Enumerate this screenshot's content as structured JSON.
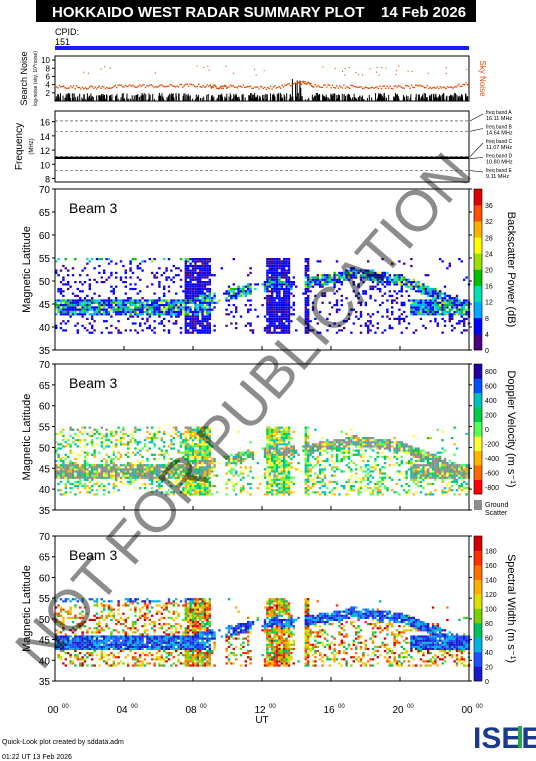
{
  "header": {
    "title": "HOKKAIDO WEST RADAR SUMMARY PLOT",
    "date": "14 Feb 2026",
    "cpid_label": "CPID:",
    "cpid_value": "151"
  },
  "watermark": "NOT FOR PUBLICATION",
  "footer": {
    "credit": "Quick-Look plot created by sddata.adm",
    "timestamp": "01:22 UT 13 Feb 2026",
    "logo": "ISEE"
  },
  "colors": {
    "cpid_bar": "#1a1aff",
    "noise_dots": "#e04a00",
    "ground_scatter": "#8c8c8c"
  },
  "chart_data": [
    {
      "type": "scatter",
      "panel": "search-noise",
      "ylabel": "Search Noise",
      "ylabel2": "log-noise (sky, 10^noise)",
      "series_label": "Sky Noise",
      "yticks": [
        2,
        4,
        6,
        8,
        10
      ],
      "ylim": [
        0,
        11
      ],
      "xlim": [
        0,
        24
      ],
      "series": [
        {
          "name": "Sky Noise",
          "x": [
            0,
            1,
            2,
            3,
            4,
            5,
            6,
            7,
            8,
            9,
            9.5,
            10,
            11,
            12,
            13,
            14,
            14.5,
            15,
            16,
            17,
            18,
            19,
            20,
            21,
            22,
            23,
            24
          ],
          "y": [
            3.5,
            3.4,
            3.3,
            3.3,
            3.6,
            3.7,
            3.6,
            3.7,
            3.8,
            3.6,
            3.4,
            3.5,
            3.6,
            3.2,
            3.4,
            4.3,
            4.5,
            3.8,
            3.6,
            3.5,
            3.4,
            3.3,
            3.4,
            3.5,
            3.3,
            3.4,
            4.2
          ]
        }
      ]
    },
    {
      "type": "line",
      "panel": "frequency",
      "ylabel": "Frequency",
      "yunit": "(MHz)",
      "yticks": [
        8,
        10,
        12,
        14,
        16
      ],
      "ylim": [
        7.5,
        17.5
      ],
      "xlim": [
        0,
        24
      ],
      "freq_bands": [
        {
          "label": "freq band A",
          "mhz": "16.11 MHz",
          "value": 16.11
        },
        {
          "label": "freq band B",
          "mhz": "14.64 MHz",
          "value": 14.64
        },
        {
          "label": "freq band C",
          "mhz": "11.07 MHz",
          "value": 11.07
        },
        {
          "label": "freq band D",
          "mhz": "10.80 MHz",
          "value": 10.8
        },
        {
          "label": "freq band E",
          "mhz": "9.11 MHz",
          "value": 9.11
        }
      ],
      "series": [
        {
          "name": "operating frequency",
          "x": [
            0,
            24
          ],
          "y": [
            10.9,
            10.9
          ]
        }
      ]
    },
    {
      "type": "heatmap",
      "panel": "power",
      "beam_label": "Beam  3",
      "ylabel": "Magnetic Latitude",
      "colorbar_label": "Backscatter Power (dB)",
      "colorbar_ticks": [
        "0",
        "4",
        "8",
        "12",
        "16",
        "20",
        "24",
        "28",
        "32",
        "36"
      ],
      "yticks": [
        35,
        40,
        45,
        50,
        55,
        60,
        65,
        70
      ],
      "ylim": [
        35,
        70
      ],
      "xlim": [
        0,
        24
      ]
    },
    {
      "type": "heatmap",
      "panel": "velocity",
      "beam_label": "Beam  3",
      "ylabel": "Magnetic Latitude",
      "colorbar_label": "Doppler Velocity (m s⁻¹)",
      "colorbar_ticks": [
        "-800",
        "-600",
        "-400",
        "-200",
        "0",
        "200",
        "400",
        "600",
        "800"
      ],
      "ground_scatter_label": [
        "Ground",
        "Scatter"
      ],
      "yticks": [
        35,
        40,
        45,
        50,
        55,
        60,
        65,
        70
      ],
      "ylim": [
        35,
        70
      ],
      "xlim": [
        0,
        24
      ]
    },
    {
      "type": "heatmap",
      "panel": "width",
      "beam_label": "Beam  3",
      "ylabel": "Magnetic Latitude",
      "colorbar_label": "Spectral Width (m s⁻¹)",
      "colorbar_ticks": [
        "0",
        "20",
        "40",
        "60",
        "80",
        "100",
        "120",
        "140",
        "160",
        "180"
      ],
      "yticks": [
        35,
        40,
        45,
        50,
        55,
        60,
        65,
        70
      ],
      "ylim": [
        35,
        70
      ],
      "xlim": [
        0,
        24
      ]
    }
  ],
  "xaxis": {
    "label": "UT",
    "ticks": [
      {
        "hour": 0,
        "text": "00",
        "sup": "00"
      },
      {
        "hour": 4,
        "text": "04",
        "sup": "00"
      },
      {
        "hour": 8,
        "text": "08",
        "sup": "00"
      },
      {
        "hour": 12,
        "text": "12",
        "sup": "00"
      },
      {
        "hour": 16,
        "text": "16",
        "sup": "00"
      },
      {
        "hour": 20,
        "text": "20",
        "sup": "00"
      },
      {
        "hour": 24,
        "text": "00",
        "sup": "00"
      }
    ]
  }
}
